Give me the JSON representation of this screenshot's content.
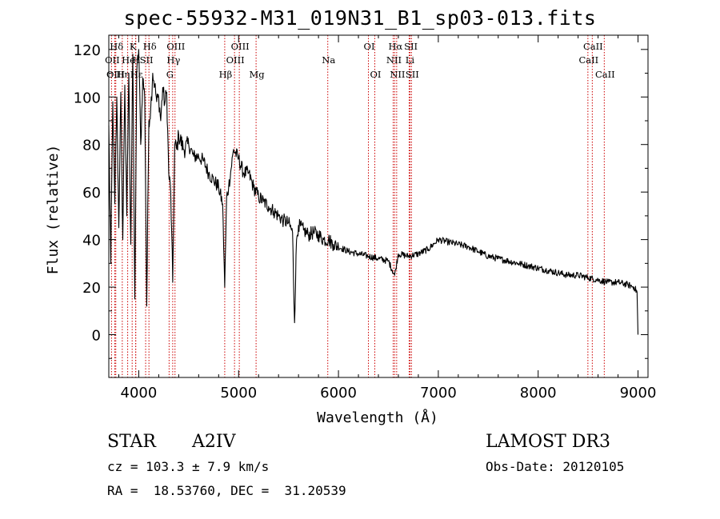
{
  "chart_data": {
    "type": "line",
    "title": "spec-55932-M31_019N31_B1_sp03-013.fits",
    "xlabel": "Wavelength (Å)",
    "ylabel": "Flux (relative)",
    "xlim": [
      3700,
      9100
    ],
    "ylim": [
      -18,
      126
    ],
    "xticks": [
      4000,
      5000,
      6000,
      7000,
      8000,
      9000
    ],
    "yticks": [
      0,
      20,
      40,
      60,
      80,
      100,
      120
    ],
    "series": [
      {
        "name": "flux",
        "x": [
          3700,
          3720,
          3740,
          3760,
          3780,
          3800,
          3820,
          3840,
          3860,
          3880,
          3900,
          3920,
          3940,
          3960,
          3970,
          3980,
          4000,
          4020,
          4040,
          4060,
          4080,
          4101,
          4120,
          4140,
          4160,
          4180,
          4200,
          4220,
          4240,
          4260,
          4280,
          4300,
          4320,
          4340,
          4360,
          4380,
          4400,
          4450,
          4500,
          4550,
          4600,
          4650,
          4700,
          4750,
          4800,
          4840,
          4861,
          4880,
          4900,
          4950,
          5000,
          5050,
          5100,
          5150,
          5200,
          5250,
          5300,
          5350,
          5400,
          5450,
          5500,
          5540,
          5560,
          5580,
          5600,
          5650,
          5700,
          5750,
          5800,
          5850,
          5900,
          5950,
          6000,
          6100,
          6200,
          6300,
          6400,
          6500,
          6563,
          6600,
          6700,
          6800,
          6900,
          7000,
          7100,
          7200,
          7300,
          7400,
          7500,
          7600,
          7700,
          7800,
          7900,
          8000,
          8100,
          8200,
          8300,
          8400,
          8500,
          8600,
          8700,
          8800,
          8900,
          8960,
          8990,
          9000
        ],
        "y": [
          88,
          30,
          98,
          55,
          100,
          45,
          102,
          40,
          105,
          50,
          110,
          38,
          118,
          15,
          60,
          110,
          120,
          80,
          108,
          100,
          12,
          90,
          95,
          110,
          105,
          98,
          100,
          90,
          104,
          97,
          102,
          68,
          60,
          22,
          80,
          78,
          84,
          78,
          80,
          75,
          75,
          73,
          68,
          65,
          62,
          55,
          20,
          58,
          62,
          78,
          74,
          68,
          68,
          62,
          58,
          56,
          54,
          52,
          50,
          48,
          47,
          43,
          5,
          40,
          46,
          44,
          42,
          43,
          42,
          40,
          40,
          38,
          37,
          35,
          34,
          33,
          32,
          31,
          25,
          34,
          33,
          34,
          36,
          40,
          39,
          38,
          37,
          35,
          33,
          32,
          31,
          30,
          29,
          28,
          27,
          26,
          25,
          25,
          24,
          23,
          22,
          22,
          21,
          20,
          18,
          0
        ]
      }
    ],
    "lines": [
      {
        "label": "Hδ",
        "x": 3770,
        "row": 0
      },
      {
        "label": "OII",
        "x": 3727,
        "row": 1
      },
      {
        "label": "OIII",
        "x": 3760,
        "row": 2
      },
      {
        "label": "K",
        "x": 3934,
        "row": 0
      },
      {
        "label": "H",
        "x": 3969,
        "row": 1
      },
      {
        "label": "He",
        "x": 3889,
        "row": 1
      },
      {
        "label": "Hη",
        "x": 3835,
        "row": 2
      },
      {
        "label": "Hε",
        "x": 3970,
        "row": 2
      },
      {
        "label": "Hδ",
        "x": 4102,
        "row": 0
      },
      {
        "label": "SII",
        "x": 4069,
        "row": 1
      },
      {
        "label": "OIII",
        "x": 4363,
        "row": 0
      },
      {
        "label": "Hγ",
        "x": 4340,
        "row": 1
      },
      {
        "label": "G",
        "x": 4304,
        "row": 2
      },
      {
        "label": "Hβ",
        "x": 4861,
        "row": 2
      },
      {
        "label": "OIII",
        "x": 5007,
        "row": 0
      },
      {
        "label": "OIII",
        "x": 4959,
        "row": 1
      },
      {
        "label": "Mg",
        "x": 5175,
        "row": 2
      },
      {
        "label": "Na",
        "x": 5893,
        "row": 1
      },
      {
        "label": "OI",
        "x": 6300,
        "row": 0
      },
      {
        "label": "OI",
        "x": 6364,
        "row": 2
      },
      {
        "label": "Hα",
        "x": 6563,
        "row": 0
      },
      {
        "label": "SII",
        "x": 6717,
        "row": 0
      },
      {
        "label": "NII",
        "x": 6548,
        "row": 1
      },
      {
        "label": "Li",
        "x": 6708,
        "row": 1
      },
      {
        "label": "NII",
        "x": 6583,
        "row": 2
      },
      {
        "label": "SII",
        "x": 6731,
        "row": 2
      },
      {
        "label": "CaII",
        "x": 8542,
        "row": 0
      },
      {
        "label": "CaII",
        "x": 8498,
        "row": 1
      },
      {
        "label": "CaII",
        "x": 8662,
        "row": 2
      }
    ]
  },
  "info": {
    "class": "STAR",
    "subclass": "A2IV",
    "survey": "LAMOST DR3",
    "cz": "cz = 103.3 ± 7.9 km/s",
    "obs_date": "Obs-Date: 20120105",
    "coords": "RA =  18.53760, DEC =  31.20539"
  }
}
